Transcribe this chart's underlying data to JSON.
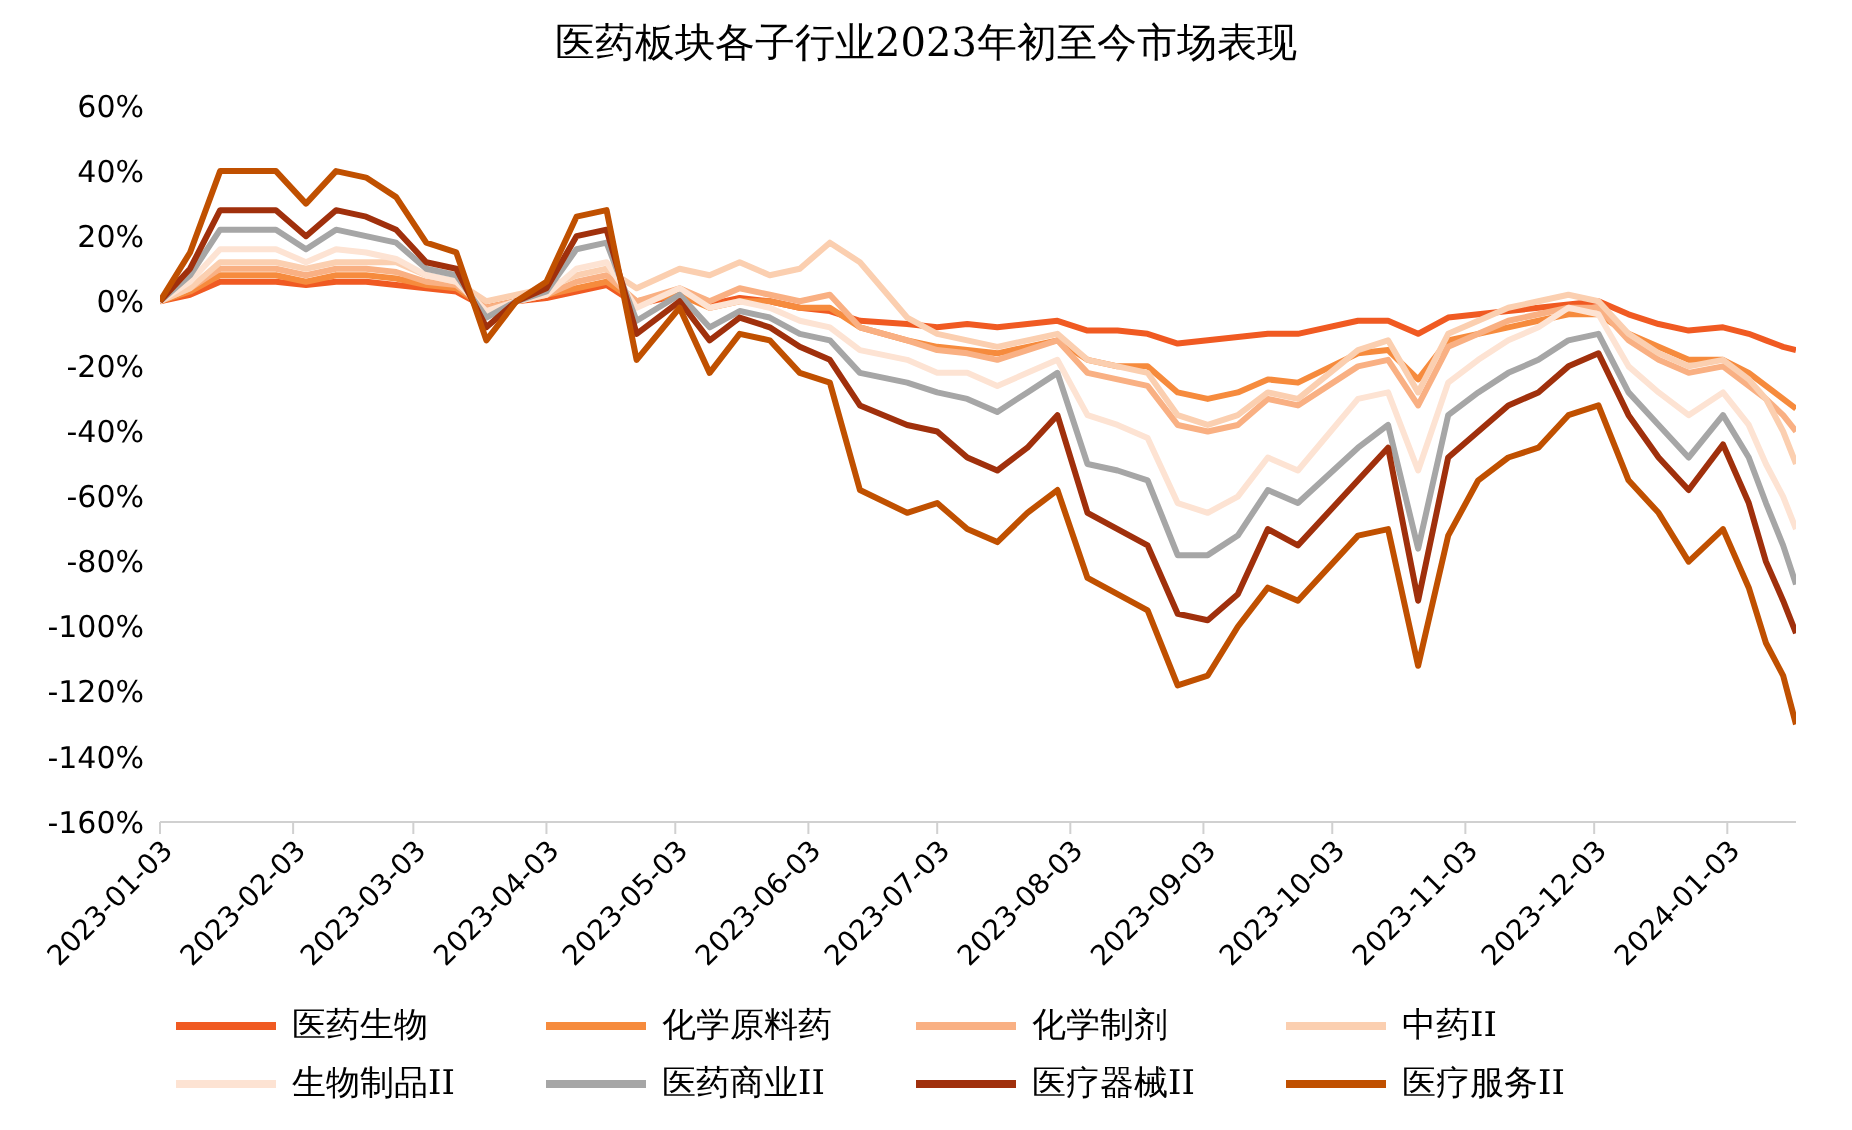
{
  "chart_data": {
    "type": "line",
    "title": "医药板块各子行业2023年初至今市场表现",
    "x": [
      "2023-01-03",
      "2023-01-10",
      "2023-01-17",
      "2023-01-30",
      "2023-02-06",
      "2023-02-13",
      "2023-02-20",
      "2023-02-27",
      "2023-03-06",
      "2023-03-13",
      "2023-03-20",
      "2023-03-27",
      "2023-04-03",
      "2023-04-10",
      "2023-04-17",
      "2023-04-24",
      "2023-05-04",
      "2023-05-11",
      "2023-05-18",
      "2023-05-25",
      "2023-06-01",
      "2023-06-08",
      "2023-06-15",
      "2023-06-26",
      "2023-07-03",
      "2023-07-10",
      "2023-07-17",
      "2023-07-24",
      "2023-07-31",
      "2023-08-07",
      "2023-08-14",
      "2023-08-21",
      "2023-08-28",
      "2023-09-04",
      "2023-09-11",
      "2023-09-18",
      "2023-09-25",
      "2023-10-09",
      "2023-10-16",
      "2023-10-23",
      "2023-10-30",
      "2023-11-06",
      "2023-11-13",
      "2023-11-20",
      "2023-11-27",
      "2023-12-04",
      "2023-12-11",
      "2023-12-18",
      "2023-12-25",
      "2024-01-02",
      "2024-01-08",
      "2024-01-12",
      "2024-01-16",
      "2024-01-19"
    ],
    "series": [
      {
        "name": "医药生物",
        "color": "#f05a22",
        "values": [
          0,
          2,
          6,
          6,
          5,
          6,
          6,
          5,
          4,
          3,
          -2,
          0,
          1,
          3,
          5,
          -1,
          2,
          -1,
          1,
          0,
          -2,
          -3,
          -6,
          -7,
          -8,
          -7,
          -8,
          -7,
          -6,
          -9,
          -9,
          -10,
          -13,
          -12,
          -11,
          -10,
          -10,
          -6,
          -6,
          -10,
          -5,
          -4,
          -3,
          -2,
          -1,
          0,
          -4,
          -7,
          -9,
          -8,
          -10,
          -12,
          -14,
          -15
        ]
      },
      {
        "name": "化学原料药",
        "color": "#f68b3d",
        "values": [
          0,
          3,
          8,
          8,
          6,
          8,
          8,
          7,
          5,
          4,
          -2,
          0,
          2,
          4,
          6,
          0,
          2,
          -2,
          0,
          0,
          -2,
          -2,
          -8,
          -12,
          -14,
          -15,
          -16,
          -14,
          -12,
          -18,
          -20,
          -20,
          -28,
          -30,
          -28,
          -24,
          -25,
          -16,
          -15,
          -24,
          -12,
          -10,
          -8,
          -6,
          -4,
          -4,
          -10,
          -14,
          -18,
          -18,
          -22,
          -26,
          -30,
          -33
        ]
      },
      {
        "name": "化学制剂",
        "color": "#f9b083",
        "values": [
          0,
          4,
          10,
          10,
          8,
          10,
          10,
          9,
          6,
          5,
          -2,
          0,
          2,
          6,
          8,
          0,
          4,
          0,
          4,
          2,
          0,
          2,
          -8,
          -12,
          -15,
          -16,
          -18,
          -15,
          -12,
          -22,
          -24,
          -26,
          -38,
          -40,
          -38,
          -30,
          -32,
          -20,
          -18,
          -32,
          -14,
          -10,
          -6,
          -4,
          -2,
          -2,
          -12,
          -18,
          -22,
          -20,
          -26,
          -30,
          -35,
          -40
        ]
      },
      {
        "name": "中药II",
        "color": "#fbcfb0",
        "values": [
          0,
          4,
          12,
          12,
          10,
          12,
          12,
          12,
          8,
          6,
          0,
          2,
          4,
          8,
          10,
          4,
          10,
          8,
          12,
          8,
          10,
          18,
          12,
          -5,
          -10,
          -12,
          -14,
          -12,
          -10,
          -18,
          -20,
          -22,
          -35,
          -38,
          -35,
          -28,
          -30,
          -15,
          -12,
          -28,
          -10,
          -6,
          -2,
          0,
          2,
          0,
          -10,
          -16,
          -20,
          -18,
          -24,
          -30,
          -40,
          -50
        ]
      },
      {
        "name": "生物制品II",
        "color": "#fde3d3",
        "values": [
          0,
          6,
          16,
          16,
          12,
          16,
          15,
          13,
          8,
          6,
          -3,
          0,
          2,
          10,
          12,
          -2,
          4,
          -2,
          0,
          -2,
          -6,
          -8,
          -15,
          -18,
          -22,
          -22,
          -26,
          -22,
          -18,
          -35,
          -38,
          -42,
          -62,
          -65,
          -60,
          -48,
          -52,
          -30,
          -28,
          -52,
          -25,
          -18,
          -12,
          -8,
          -2,
          -4,
          -20,
          -28,
          -35,
          -28,
          -38,
          -50,
          -60,
          -70
        ]
      },
      {
        "name": "医药商业II",
        "color": "#a6a6a6",
        "values": [
          0,
          8,
          22,
          22,
          16,
          22,
          20,
          18,
          10,
          8,
          -5,
          0,
          3,
          16,
          18,
          -6,
          2,
          -8,
          -3,
          -5,
          -10,
          -12,
          -22,
          -25,
          -28,
          -30,
          -34,
          -28,
          -22,
          -50,
          -52,
          -55,
          -78,
          -78,
          -72,
          -58,
          -62,
          -45,
          -38,
          -76,
          -35,
          -28,
          -22,
          -18,
          -12,
          -10,
          -28,
          -38,
          -48,
          -35,
          -48,
          -62,
          -75,
          -87
        ]
      },
      {
        "name": "医疗器械II",
        "color": "#a0300c",
        "values": [
          0,
          10,
          28,
          28,
          20,
          28,
          26,
          22,
          12,
          10,
          -8,
          0,
          4,
          20,
          22,
          -10,
          0,
          -12,
          -5,
          -8,
          -14,
          -18,
          -32,
          -38,
          -40,
          -48,
          -52,
          -45,
          -35,
          -65,
          -70,
          -75,
          -96,
          -98,
          -90,
          -70,
          -75,
          -55,
          -45,
          -92,
          -48,
          -40,
          -32,
          -28,
          -20,
          -16,
          -35,
          -48,
          -58,
          -44,
          -62,
          -80,
          -92,
          -102
        ]
      },
      {
        "name": "医疗服务II",
        "color": "#c05000",
        "values": [
          0,
          15,
          40,
          40,
          30,
          40,
          38,
          32,
          18,
          15,
          -12,
          0,
          6,
          26,
          28,
          -18,
          -2,
          -22,
          -10,
          -12,
          -22,
          -25,
          -58,
          -65,
          -62,
          -70,
          -74,
          -65,
          -58,
          -85,
          -90,
          -95,
          -118,
          -115,
          -100,
          -88,
          -92,
          -72,
          -70,
          -112,
          -72,
          -55,
          -48,
          -45,
          -35,
          -32,
          -55,
          -65,
          -80,
          -70,
          -88,
          -105,
          -115,
          -130
        ]
      }
    ],
    "xlim": [
      "2023-01-03",
      "2024-01-19"
    ],
    "xticks": [
      "2023-01-03",
      "2023-02-03",
      "2023-03-03",
      "2023-04-03",
      "2023-05-03",
      "2023-06-03",
      "2023-07-03",
      "2023-08-03",
      "2023-09-03",
      "2023-10-03",
      "2023-11-03",
      "2023-12-03",
      "2024-01-03"
    ],
    "ylim": [
      -160,
      60
    ],
    "yticks": [
      {
        "value": 60,
        "label": "60%"
      },
      {
        "value": 40,
        "label": "40%"
      },
      {
        "value": 20,
        "label": "20%"
      },
      {
        "value": 0,
        "label": "0%"
      },
      {
        "value": -20,
        "label": "-20%"
      },
      {
        "value": -40,
        "label": "-40%"
      },
      {
        "value": -60,
        "label": "-60%"
      },
      {
        "value": -80,
        "label": "-80%"
      },
      {
        "value": -100,
        "label": "-100%"
      },
      {
        "value": -120,
        "label": "-120%"
      },
      {
        "value": -140,
        "label": "-140%"
      },
      {
        "value": -160,
        "label": "-160%"
      }
    ],
    "legend": "bottom",
    "marker": "none",
    "line_style": "solid"
  }
}
